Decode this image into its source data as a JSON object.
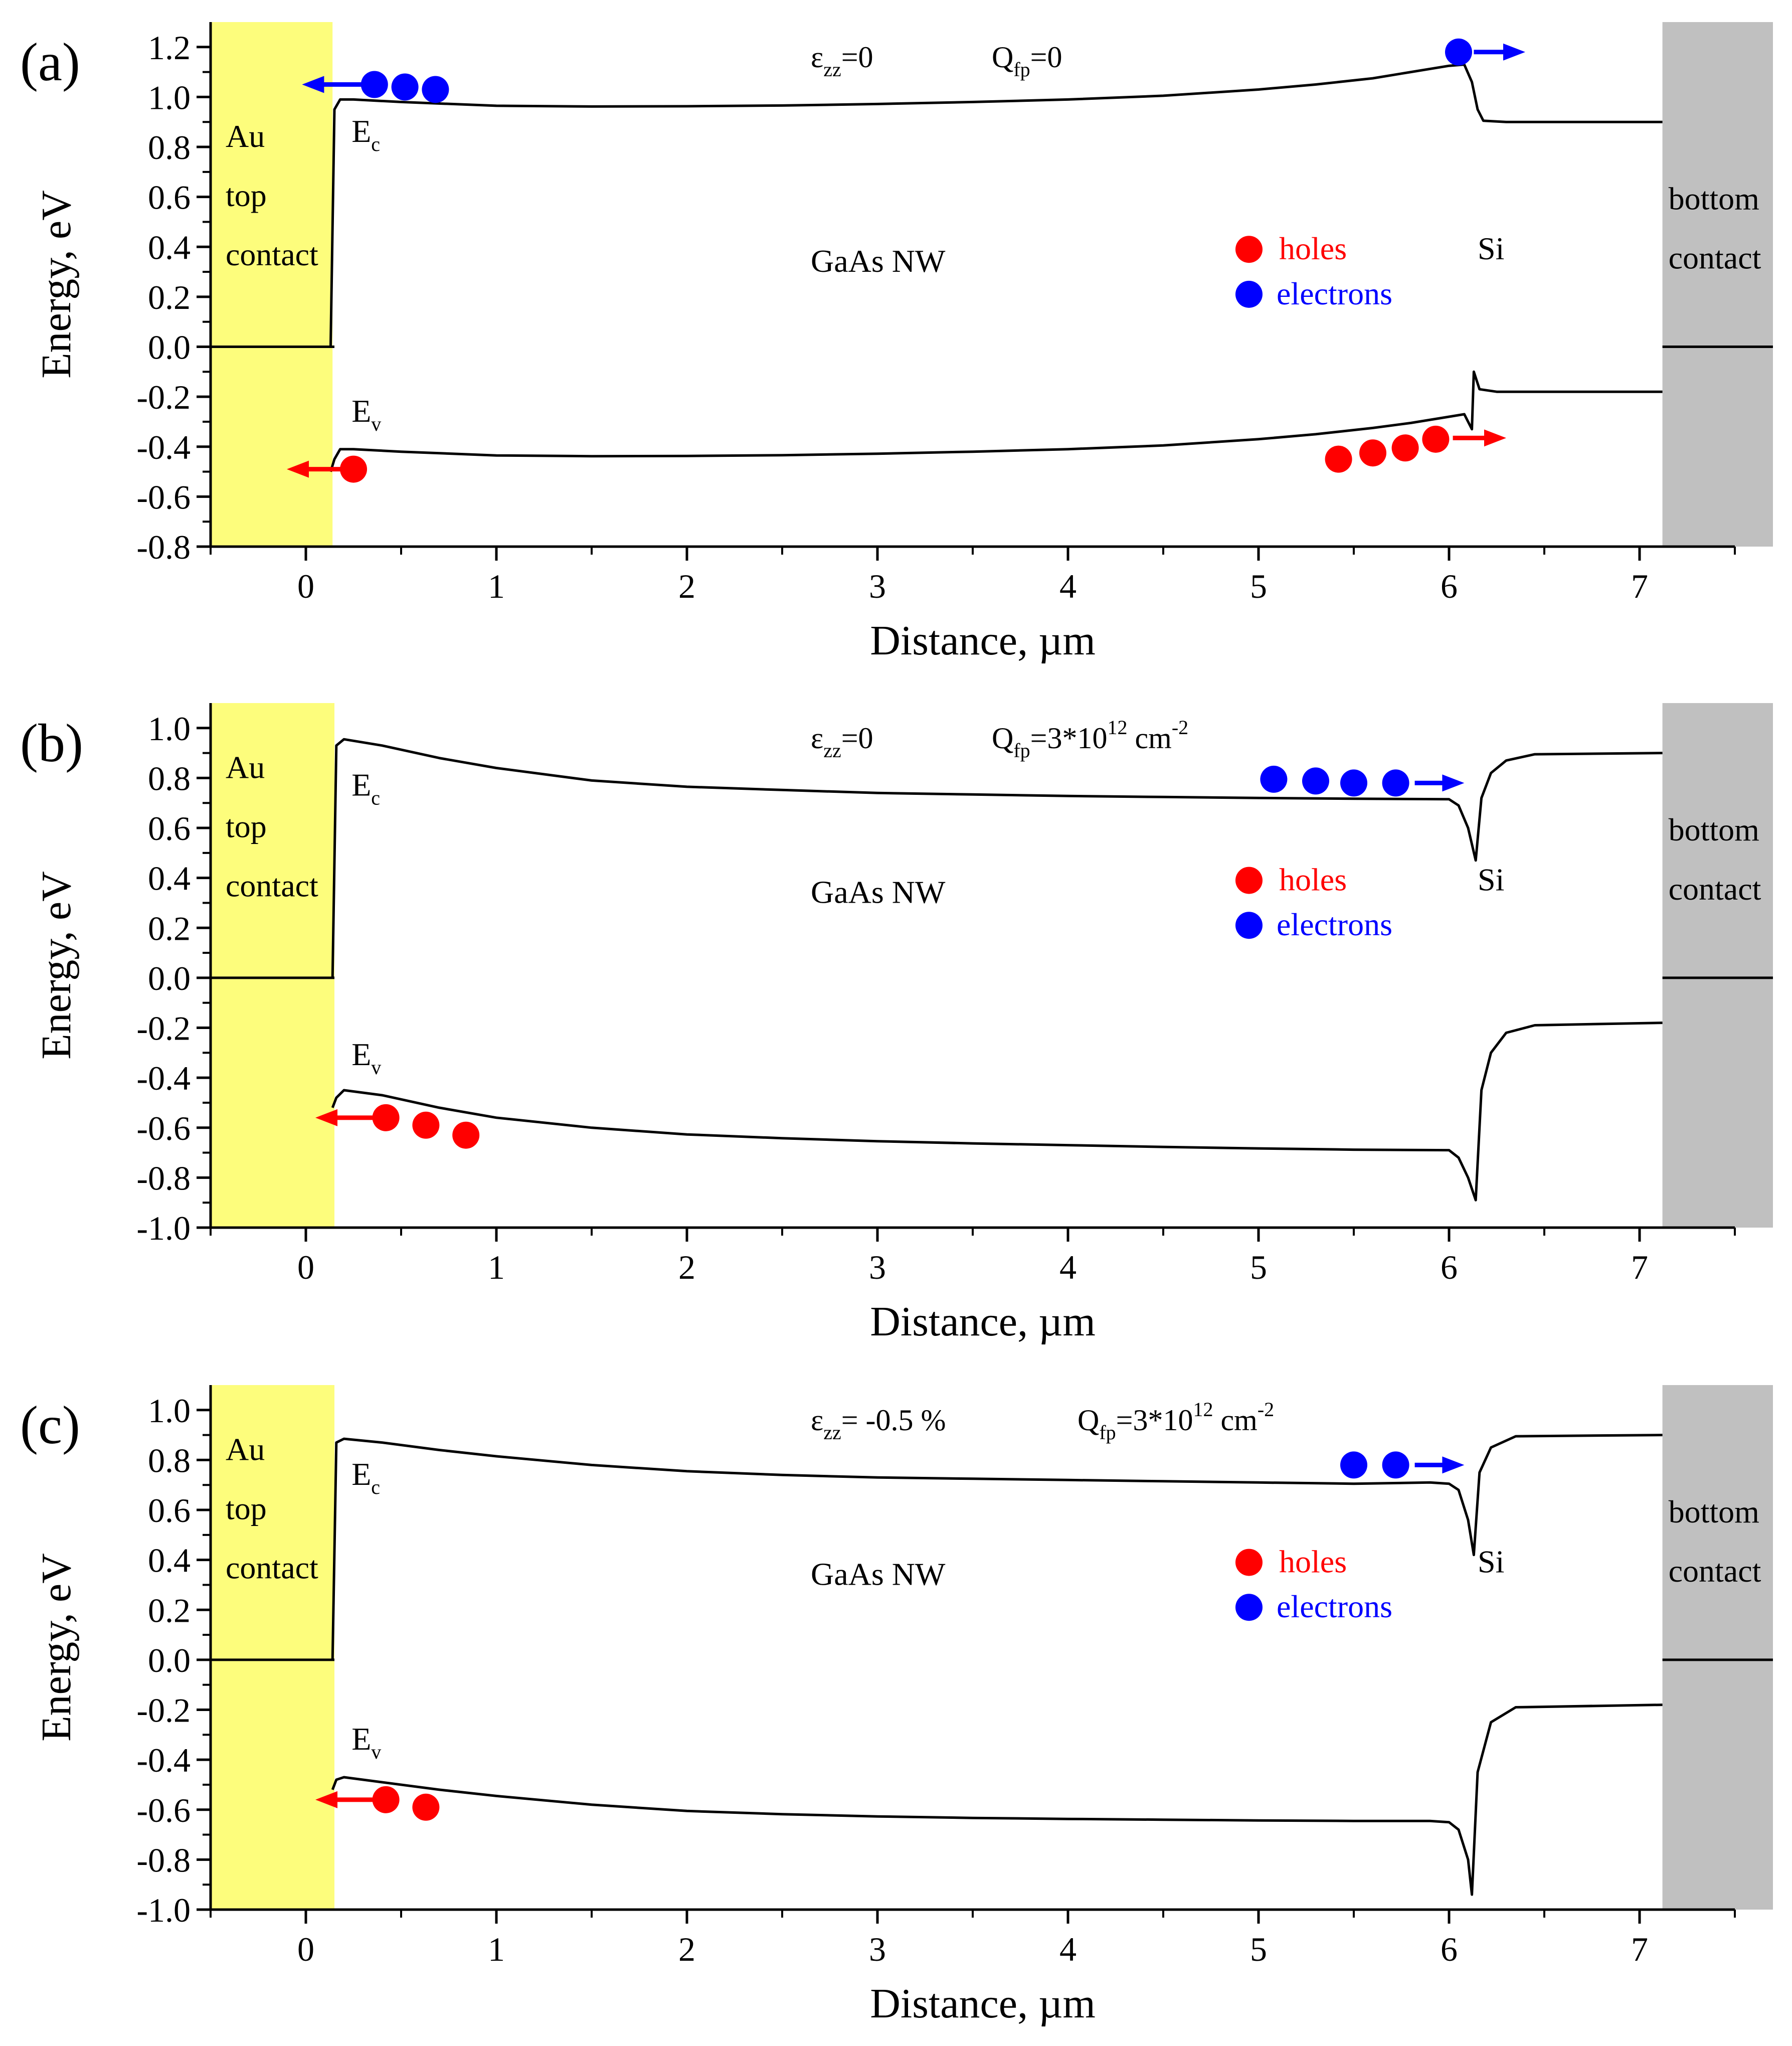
{
  "chart_data": [
    {
      "type": "line",
      "panel_label": "(a)",
      "xlabel": "Distance, µm",
      "ylabel": "Energy, eV",
      "xlim": [
        -0.5,
        7.5
      ],
      "ylim": [
        -0.8,
        1.3
      ],
      "x_ticks": [
        "0",
        "1",
        "2",
        "3",
        "4",
        "5",
        "6",
        "7"
      ],
      "y_ticks": [
        "-0.8",
        "-0.6",
        "-0.4",
        "-0.2",
        "0.0",
        "0.2",
        "0.4",
        "0.6",
        "0.8",
        "1.0",
        "1.2"
      ],
      "y_tick_values": [
        -0.8,
        -0.6,
        -0.4,
        -0.2,
        0.0,
        0.2,
        0.4,
        0.6,
        0.8,
        1.0,
        1.2
      ],
      "regions": {
        "top_contact": {
          "line1": "Au",
          "line2": "top",
          "line3": "contact",
          "x_range": [
            -0.5,
            0.14
          ],
          "color": "#fdfd7c"
        },
        "bottom_contact": {
          "line1": "bottom",
          "line2": "contact",
          "x_range": [
            7.12,
            7.7
          ],
          "color": "#c0c0c0"
        },
        "nanowire_label": "GaAs NW",
        "substrate_label": "Si"
      },
      "annotation": {
        "strain_symbol": "ε",
        "strain_sub": "zz",
        "strain_value": "=0",
        "charge_symbol": "Q",
        "charge_sub": "fp",
        "charge_value": "=0",
        "charge_exp": "",
        "charge_tail": ""
      },
      "band_labels": {
        "ec_main": "E",
        "ec_sub": "c",
        "ev_main": "E",
        "ev_sub": "v"
      },
      "legend": {
        "holes": "holes",
        "electrons": "electrons"
      },
      "colors": {
        "holes": "#ff0000",
        "electrons": "#0000ff"
      },
      "fermi_level": 0.0,
      "series": [
        {
          "name": "Ec",
          "x": [
            0.13,
            0.15,
            0.18,
            0.25,
            0.5,
            1.0,
            1.5,
            2.0,
            2.5,
            3.0,
            3.5,
            4.0,
            4.5,
            5.0,
            5.3,
            5.6,
            5.8,
            6.0,
            6.08,
            6.12,
            6.15,
            6.18,
            6.3,
            7.12
          ],
          "y": [
            0.0,
            0.95,
            0.99,
            0.99,
            0.98,
            0.965,
            0.962,
            0.963,
            0.966,
            0.972,
            0.98,
            0.99,
            1.005,
            1.03,
            1.05,
            1.075,
            1.1,
            1.125,
            1.13,
            1.06,
            0.95,
            0.905,
            0.9,
            0.9
          ]
        },
        {
          "name": "Ev",
          "x": [
            0.13,
            0.15,
            0.18,
            0.25,
            0.5,
            1.0,
            1.5,
            2.0,
            2.5,
            3.0,
            3.5,
            4.0,
            4.5,
            5.0,
            5.3,
            5.6,
            5.8,
            6.0,
            6.08,
            6.12,
            6.13,
            6.16,
            6.25,
            7.12
          ],
          "y": [
            -0.5,
            -0.45,
            -0.41,
            -0.41,
            -0.42,
            -0.435,
            -0.438,
            -0.437,
            -0.434,
            -0.428,
            -0.42,
            -0.41,
            -0.395,
            -0.37,
            -0.35,
            -0.325,
            -0.305,
            -0.28,
            -0.27,
            -0.33,
            -0.1,
            -0.17,
            -0.18,
            -0.18
          ]
        }
      ],
      "electrons": [
        {
          "x": 0.36,
          "y": 1.05
        },
        {
          "x": 0.52,
          "y": 1.04
        },
        {
          "x": 0.68,
          "y": 1.03
        },
        {
          "x": 6.05,
          "y": 1.18
        }
      ],
      "holes": [
        {
          "x": 0.25,
          "y": -0.49
        },
        {
          "x": 5.42,
          "y": -0.45
        },
        {
          "x": 5.6,
          "y": -0.425
        },
        {
          "x": 5.77,
          "y": -0.405
        },
        {
          "x": 5.93,
          "y": -0.37
        }
      ],
      "arrows": [
        {
          "color": "electrons",
          "from": [
            0.32,
            1.05
          ],
          "to": [
            -0.02,
            1.05
          ]
        },
        {
          "color": "electrons",
          "from": [
            6.13,
            1.18
          ],
          "to": [
            6.4,
            1.18
          ]
        },
        {
          "color": "holes",
          "from": [
            0.2,
            -0.49
          ],
          "to": [
            -0.1,
            -0.49
          ]
        },
        {
          "color": "holes",
          "from": [
            6.02,
            -0.365
          ],
          "to": [
            6.3,
            -0.365
          ]
        }
      ]
    },
    {
      "type": "line",
      "panel_label": "(b)",
      "xlabel": "Distance, µm",
      "ylabel": "Energy, eV",
      "xlim": [
        -0.5,
        7.5
      ],
      "ylim": [
        -1.0,
        1.1
      ],
      "x_ticks": [
        "0",
        "1",
        "2",
        "3",
        "4",
        "5",
        "6",
        "7"
      ],
      "y_ticks": [
        "-1.0",
        "-0.8",
        "-0.6",
        "-0.4",
        "-0.2",
        "0.0",
        "0.2",
        "0.4",
        "0.6",
        "0.8",
        "1.0"
      ],
      "y_tick_values": [
        -1.0,
        -0.8,
        -0.6,
        -0.4,
        -0.2,
        0.0,
        0.2,
        0.4,
        0.6,
        0.8,
        1.0
      ],
      "regions": {
        "top_contact": {
          "line1": "Au",
          "line2": "top",
          "line3": "contact",
          "x_range": [
            -0.5,
            0.15
          ],
          "color": "#fdfd7c"
        },
        "bottom_contact": {
          "line1": "bottom",
          "line2": "contact",
          "x_range": [
            7.12,
            7.7
          ],
          "color": "#c0c0c0"
        },
        "nanowire_label": "GaAs NW",
        "substrate_label": "Si"
      },
      "annotation": {
        "strain_symbol": "ε",
        "strain_sub": "zz",
        "strain_value": "=0",
        "charge_symbol": "Q",
        "charge_sub": "fp",
        "charge_value": "=3*10",
        "charge_exp": "12",
        "charge_tail": " cm",
        "charge_tail_exp": "-2"
      },
      "band_labels": {
        "ec_main": "E",
        "ec_sub": "c",
        "ev_main": "E",
        "ev_sub": "v"
      },
      "legend": {
        "holes": "holes",
        "electrons": "electrons"
      },
      "colors": {
        "holes": "#ff0000",
        "electrons": "#0000ff"
      },
      "fermi_level": 0.0,
      "series": [
        {
          "name": "Ec",
          "x": [
            0.14,
            0.16,
            0.2,
            0.4,
            0.7,
            1.0,
            1.5,
            2.0,
            2.5,
            3.0,
            3.5,
            4.0,
            4.5,
            5.0,
            5.5,
            6.0,
            6.05,
            6.1,
            6.14,
            6.17,
            6.22,
            6.3,
            6.45,
            7.12
          ],
          "y": [
            0.0,
            0.93,
            0.955,
            0.93,
            0.88,
            0.84,
            0.79,
            0.765,
            0.752,
            0.74,
            0.734,
            0.728,
            0.724,
            0.72,
            0.717,
            0.715,
            0.69,
            0.6,
            0.47,
            0.72,
            0.82,
            0.87,
            0.895,
            0.9
          ]
        },
        {
          "name": "Ev",
          "x": [
            0.14,
            0.16,
            0.2,
            0.4,
            0.7,
            1.0,
            1.5,
            2.0,
            2.5,
            3.0,
            3.5,
            4.0,
            4.5,
            5.0,
            5.5,
            6.0,
            6.05,
            6.1,
            6.14,
            6.17,
            6.22,
            6.3,
            6.45,
            7.12
          ],
          "y": [
            -0.52,
            -0.48,
            -0.45,
            -0.47,
            -0.52,
            -0.56,
            -0.6,
            -0.627,
            -0.642,
            -0.654,
            -0.663,
            -0.67,
            -0.677,
            -0.683,
            -0.688,
            -0.69,
            -0.72,
            -0.8,
            -0.89,
            -0.45,
            -0.3,
            -0.22,
            -0.19,
            -0.18
          ]
        }
      ],
      "electrons": [
        {
          "x": 5.08,
          "y": 0.795
        },
        {
          "x": 5.3,
          "y": 0.788
        },
        {
          "x": 5.5,
          "y": 0.78
        },
        {
          "x": 5.72,
          "y": 0.78
        }
      ],
      "holes": [
        {
          "x": 0.42,
          "y": -0.56
        },
        {
          "x": 0.63,
          "y": -0.59
        },
        {
          "x": 0.84,
          "y": -0.63
        }
      ],
      "arrows": [
        {
          "color": "electrons",
          "from": [
            5.82,
            0.78
          ],
          "to": [
            6.08,
            0.78
          ]
        },
        {
          "color": "holes",
          "from": [
            0.37,
            -0.56
          ],
          "to": [
            0.05,
            -0.56
          ]
        }
      ]
    },
    {
      "type": "line",
      "panel_label": "(c)",
      "xlabel": "Distance, µm",
      "ylabel": "Energy, eV",
      "xlim": [
        -0.5,
        7.5
      ],
      "ylim": [
        -1.0,
        1.1
      ],
      "x_ticks": [
        "0",
        "1",
        "2",
        "3",
        "4",
        "5",
        "6",
        "7"
      ],
      "y_ticks": [
        "-1.0",
        "-0.8",
        "-0.6",
        "-0.4",
        "-0.2",
        "0.0",
        "0.2",
        "0.4",
        "0.6",
        "0.8",
        "1.0"
      ],
      "y_tick_values": [
        -1.0,
        -0.8,
        -0.6,
        -0.4,
        -0.2,
        0.0,
        0.2,
        0.4,
        0.6,
        0.8,
        1.0
      ],
      "regions": {
        "top_contact": {
          "line1": "Au",
          "line2": "top",
          "line3": "contact",
          "x_range": [
            -0.5,
            0.15
          ],
          "color": "#fdfd7c"
        },
        "bottom_contact": {
          "line1": "bottom",
          "line2": "contact",
          "x_range": [
            7.12,
            7.7
          ],
          "color": "#c0c0c0"
        },
        "nanowire_label": "GaAs NW",
        "substrate_label": "Si"
      },
      "annotation": {
        "strain_symbol": "ε",
        "strain_sub": "zz",
        "strain_value": "= -0.5 %",
        "charge_symbol": "Q",
        "charge_sub": "fp",
        "charge_value": "=3*10",
        "charge_exp": "12",
        "charge_tail": " cm",
        "charge_tail_exp": "-2"
      },
      "band_labels": {
        "ec_main": "E",
        "ec_sub": "c",
        "ev_main": "E",
        "ev_sub": "v"
      },
      "legend": {
        "holes": "holes",
        "electrons": "electrons"
      },
      "colors": {
        "holes": "#ff0000",
        "electrons": "#0000ff"
      },
      "fermi_level": 0.0,
      "series": [
        {
          "name": "Ec",
          "x": [
            0.14,
            0.16,
            0.2,
            0.4,
            0.7,
            1.0,
            1.5,
            2.0,
            2.5,
            3.0,
            3.5,
            4.0,
            4.5,
            5.0,
            5.5,
            5.9,
            6.0,
            6.05,
            6.1,
            6.13,
            6.16,
            6.22,
            6.35,
            7.12
          ],
          "y": [
            0.0,
            0.87,
            0.885,
            0.87,
            0.84,
            0.815,
            0.78,
            0.755,
            0.74,
            0.73,
            0.725,
            0.72,
            0.715,
            0.71,
            0.705,
            0.71,
            0.705,
            0.68,
            0.56,
            0.42,
            0.75,
            0.85,
            0.895,
            0.9
          ]
        },
        {
          "name": "Ev",
          "x": [
            0.14,
            0.16,
            0.2,
            0.4,
            0.7,
            1.0,
            1.5,
            2.0,
            2.5,
            3.0,
            3.5,
            4.0,
            4.5,
            5.0,
            5.5,
            5.9,
            6.0,
            6.05,
            6.1,
            6.12,
            6.15,
            6.22,
            6.35,
            7.12
          ],
          "y": [
            -0.52,
            -0.48,
            -0.47,
            -0.49,
            -0.52,
            -0.545,
            -0.58,
            -0.605,
            -0.618,
            -0.627,
            -0.633,
            -0.637,
            -0.64,
            -0.643,
            -0.645,
            -0.645,
            -0.65,
            -0.68,
            -0.8,
            -0.94,
            -0.45,
            -0.25,
            -0.19,
            -0.18
          ]
        }
      ],
      "electrons": [
        {
          "x": 5.5,
          "y": 0.78
        },
        {
          "x": 5.72,
          "y": 0.78
        }
      ],
      "holes": [
        {
          "x": 0.42,
          "y": -0.56
        },
        {
          "x": 0.63,
          "y": -0.59
        }
      ],
      "arrows": [
        {
          "color": "electrons",
          "from": [
            5.82,
            0.78
          ],
          "to": [
            6.08,
            0.78
          ]
        },
        {
          "color": "holes",
          "from": [
            0.37,
            -0.56
          ],
          "to": [
            0.05,
            -0.56
          ]
        }
      ]
    }
  ]
}
